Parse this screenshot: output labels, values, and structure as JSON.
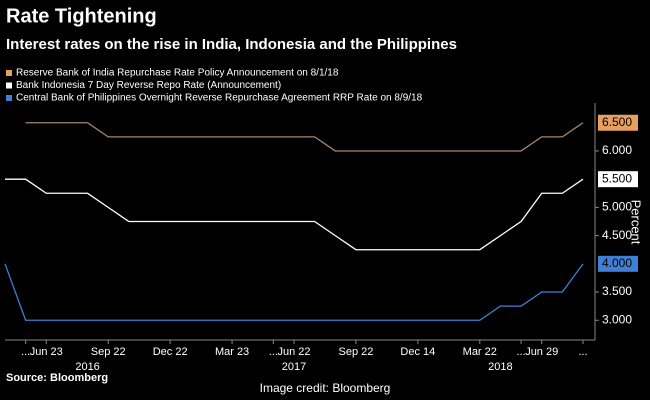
{
  "chart_data": {
    "type": "line",
    "title": "Rate Tightening",
    "subtitle": "Interest rates on the rise in India, Indonesia and the Philippines",
    "y_axis_label": "Percent",
    "source": "Source: Bloomberg",
    "credit": "Image credit: Bloomberg",
    "categories": [
      null,
      "...",
      "Jun 23",
      null,
      null,
      "Sep 22",
      null,
      null,
      "Dec 22",
      null,
      null,
      "Mar 23",
      null,
      "...",
      "Jun 22",
      null,
      null,
      "Sep 22",
      null,
      null,
      "Dec 14",
      null,
      null,
      "Mar 22",
      null,
      "...",
      "Jun 29",
      null,
      "..."
    ],
    "year_categories": [
      null,
      null,
      null,
      null,
      "2016",
      null,
      null,
      null,
      null,
      null,
      null,
      null,
      null,
      null,
      "2017",
      null,
      null,
      null,
      null,
      null,
      null,
      null,
      null,
      null,
      "2018",
      null,
      null,
      null,
      null
    ],
    "series": [
      {
        "name": "Reserve Bank of India Repurchase Rate Policy Announcement  on 8/1/18",
        "color": "#a8866c",
        "legend_color": "#e8a060",
        "last_label": "6.500",
        "values": [
          null,
          6.5,
          6.5,
          6.5,
          6.5,
          6.25,
          6.25,
          6.25,
          6.25,
          6.25,
          6.25,
          6.25,
          6.25,
          6.25,
          6.25,
          6.25,
          6.0,
          6.0,
          6.0,
          6.0,
          6.0,
          6.0,
          6.0,
          6.0,
          6.0,
          6.0,
          6.25,
          6.25,
          6.5
        ]
      },
      {
        "name": "Bank Indonesia 7 Day Reverse Repo Rate (Announcement)",
        "color": "#ffffff",
        "legend_color": "#ffffff",
        "last_label": "5.500",
        "values": [
          5.5,
          5.5,
          5.25,
          5.25,
          5.25,
          5.0,
          4.75,
          4.75,
          4.75,
          4.75,
          4.75,
          4.75,
          4.75,
          4.75,
          4.75,
          4.75,
          4.5,
          4.25,
          4.25,
          4.25,
          4.25,
          4.25,
          4.25,
          4.25,
          4.5,
          4.75,
          5.25,
          5.25,
          5.5
        ]
      },
      {
        "name": "Central Bank of Philippines Overnight Reverse Repurchase Agreement RRP Rate  on 8/9/18",
        "color": "#3f7fd6",
        "legend_color": "#3f7fd6",
        "last_label": "4.000",
        "values": [
          4.0,
          3.0,
          3.0,
          3.0,
          3.0,
          3.0,
          3.0,
          3.0,
          3.0,
          3.0,
          3.0,
          3.0,
          3.0,
          3.0,
          3.0,
          3.0,
          3.0,
          3.0,
          3.0,
          3.0,
          3.0,
          3.0,
          3.0,
          3.0,
          3.25,
          3.25,
          3.5,
          3.5,
          4.0
        ]
      }
    ],
    "ylim": [
      2.65,
      6.85
    ],
    "yticks": [
      {
        "value": 3,
        "label": "3.000"
      },
      {
        "value": 3.5,
        "label": "3.500"
      },
      {
        "value": 4.5,
        "label": "4.500"
      },
      {
        "value": 5,
        "label": "5.000"
      },
      {
        "value": 6,
        "label": "6.000"
      }
    ],
    "axis_side": "right"
  }
}
